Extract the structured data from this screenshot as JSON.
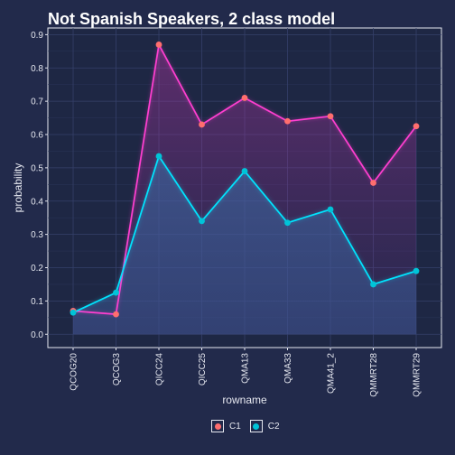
{
  "chart_data": {
    "type": "line",
    "title": "Not Spanish Speakers, 2 class model",
    "xlabel": "rowname",
    "ylabel": "probability",
    "categories": [
      "QCOG20",
      "QCOG3",
      "QICC24",
      "QICC25",
      "QMA13",
      "QMA33",
      "QMA41_2",
      "QMMRT28",
      "QMMRT29"
    ],
    "series": [
      {
        "name": "C1",
        "color": "#ff6e6e",
        "line_color": "#ff3fd0",
        "values": [
          0.07,
          0.06,
          0.87,
          0.63,
          0.71,
          0.64,
          0.655,
          0.455,
          0.625
        ]
      },
      {
        "name": "C2",
        "color": "#00c4d8",
        "line_color": "#00e5ff",
        "values": [
          0.065,
          0.125,
          0.535,
          0.34,
          0.49,
          0.335,
          0.375,
          0.15,
          0.19
        ]
      }
    ],
    "yticks": [
      0.0,
      0.1,
      0.2,
      0.3,
      0.4,
      0.5,
      0.6,
      0.7,
      0.8,
      0.9
    ],
    "ytick_labels": [
      "0.0",
      "0.1",
      "0.2",
      "0.3",
      "0.4",
      "0.5",
      "0.6",
      "0.7",
      "0.8",
      "0.9"
    ],
    "ylim": [
      -0.04,
      0.92
    ],
    "grid": true,
    "legend_position": "bottom",
    "background_color": "#222a4b"
  }
}
